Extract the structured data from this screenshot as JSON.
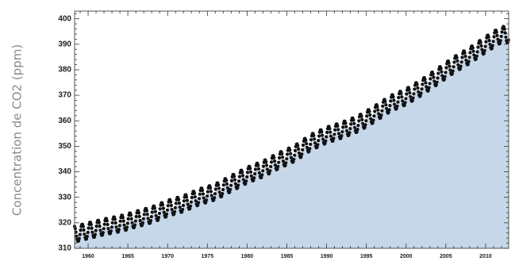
{
  "chart_data": {
    "type": "scatter",
    "title": "",
    "xlabel": "",
    "ylabel": "Concentration de CO2 (ppm)",
    "xlim": [
      1958.3,
      2012.9
    ],
    "ylim": [
      310,
      403
    ],
    "x_ticks": [
      "1960",
      "1965",
      "1970",
      "1975",
      "1980",
      "1985",
      "1990",
      "1995",
      "2000",
      "2005",
      "2010"
    ],
    "y_ticks": [
      "310",
      "320",
      "330",
      "340",
      "350",
      "360",
      "370",
      "380",
      "390",
      "400"
    ],
    "fill_under_curve": true,
    "grid": false,
    "series": [
      {
        "name": "",
        "marker": "dot",
        "seasonal_amplitude_ppm": 3.2,
        "x": [
          1958,
          1960,
          1962,
          1964,
          1966,
          1968,
          1970,
          1972,
          1974,
          1976,
          1978,
          1980,
          1982,
          1984,
          1986,
          1988,
          1990,
          1992,
          1994,
          1996,
          1998,
          2000,
          2002,
          2004,
          2006,
          2008,
          2010,
          2012
        ],
        "y": [
          315.3,
          316.9,
          318.4,
          319.6,
          321.4,
          323.1,
          325.7,
          327.5,
          330.2,
          332.1,
          335.4,
          338.7,
          341.1,
          344.4,
          347.2,
          351.5,
          354.4,
          356.4,
          358.9,
          362.6,
          366.7,
          369.4,
          373.2,
          377.5,
          381.9,
          385.6,
          389.9,
          393.8
        ]
      }
    ],
    "colors": {
      "fill": "#c6d7ea",
      "marker": "#111111",
      "frame": "#555555"
    }
  }
}
